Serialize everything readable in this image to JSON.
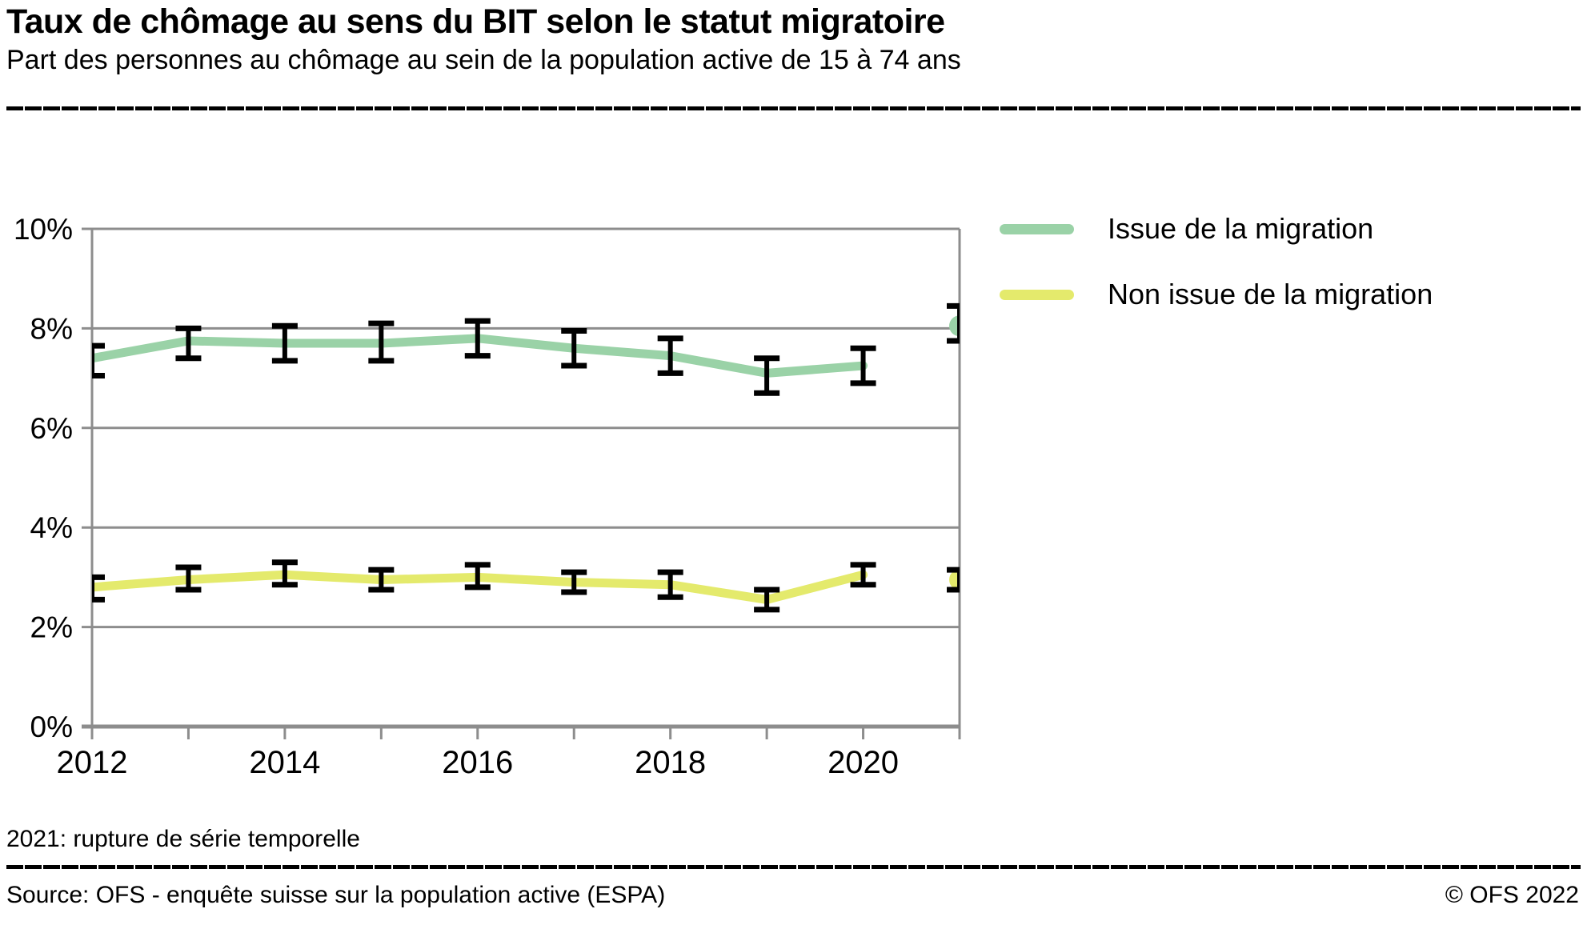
{
  "header": {
    "title": "Taux de chômage au sens du BIT selon le statut migratoire",
    "subtitle": "Part des personnes au chômage au sein de la population active de 15 à 74 ans"
  },
  "note": "2021: rupture de série temporelle",
  "footer": {
    "source": "Source: OFS - enquête suisse sur la population active (ESPA)",
    "copyright": "© OFS 2022"
  },
  "chart_data": {
    "type": "line",
    "title": "Taux de chômage au sens du BIT selon le statut migratoire",
    "subtitle": "Part des personnes au chômage au sein de la population active de 15 à 74 ans",
    "x": [
      2012,
      2013,
      2014,
      2015,
      2016,
      2017,
      2018,
      2019,
      2020,
      2021
    ],
    "series": [
      {
        "name": "Issue de la migration",
        "color": "#9ad2a7",
        "values": [
          7.4,
          7.75,
          7.7,
          7.7,
          7.8,
          7.6,
          7.45,
          7.1,
          7.25,
          8.05
        ],
        "ci_low": [
          7.05,
          7.4,
          7.35,
          7.35,
          7.45,
          7.25,
          7.1,
          6.7,
          6.9,
          7.75
        ],
        "ci_high": [
          7.65,
          8.0,
          8.05,
          8.1,
          8.15,
          7.95,
          7.8,
          7.4,
          7.6,
          8.45
        ]
      },
      {
        "name": "Non issue de la migration",
        "color": "#e4ea6c",
        "values": [
          2.8,
          2.95,
          3.05,
          2.95,
          3.0,
          2.9,
          2.85,
          2.55,
          3.05,
          2.95
        ],
        "ci_low": [
          2.55,
          2.75,
          2.85,
          2.75,
          2.8,
          2.7,
          2.6,
          2.35,
          2.85,
          2.75
        ],
        "ci_high": [
          3.0,
          3.2,
          3.3,
          3.15,
          3.25,
          3.1,
          3.1,
          2.75,
          3.25,
          3.15
        ]
      }
    ],
    "series_break_after_year": 2020,
    "ylim": [
      0,
      10
    ],
    "yticks": [
      0,
      2,
      4,
      6,
      8,
      10
    ],
    "ytick_suffix": "%",
    "xticklabels": [
      2012,
      2014,
      2016,
      2018,
      2020
    ],
    "grid": true,
    "grid_color": "#8d8d8d",
    "error_bar_color": "#000000",
    "legend_position": "right"
  }
}
